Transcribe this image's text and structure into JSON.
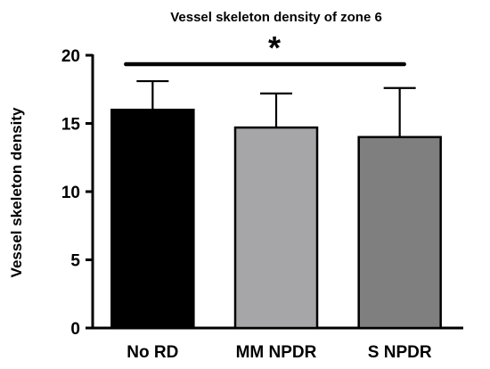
{
  "chart_data": {
    "type": "bar",
    "title": "Vessel skeleton density of zone 6",
    "ylabel": "Vessel skeleton density",
    "xlabel": "",
    "categories": [
      "No RD",
      "MM NPDR",
      "S NPDR"
    ],
    "values": [
      16.0,
      14.7,
      14.0
    ],
    "error_upper": [
      18.1,
      17.2,
      17.6
    ],
    "bar_colors": [
      "#000000",
      "#a6a6a8",
      "#7f7f7f"
    ],
    "ylim": [
      0,
      20
    ],
    "yticks": [
      "0",
      "5",
      "10",
      "15",
      "20"
    ],
    "grid": false,
    "legend": "none",
    "significance": {
      "label": "*",
      "from": "No RD",
      "to": "S NPDR"
    }
  }
}
